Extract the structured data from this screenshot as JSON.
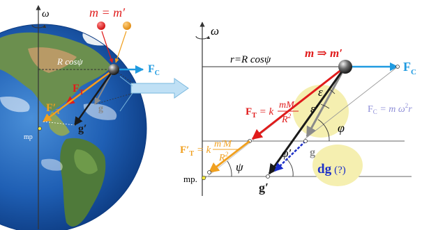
{
  "colors": {
    "red": "#e01b1b",
    "orange": "#f0a020",
    "black": "#1a1a1a",
    "gray": "#8a8a8a",
    "blue": "#1f9ae0",
    "dgblue": "#1c2fc8",
    "ball_red": "#e51f1f",
    "ball_orange": "#f29a1a",
    "highlight": "#f5efb0"
  },
  "left": {
    "omega": "ω",
    "m_eq": "m = m′",
    "r_label": "R cosψ",
    "fc": "F",
    "fc_sub": "C",
    "ft": "F",
    "ft_sub": "T",
    "ftp": "F′",
    "ftp_sub": "T",
    "g": "g",
    "gp": "g′",
    "mp": "mp"
  },
  "right": {
    "omega": "ω",
    "r_eq": "r=R cosψ",
    "m_arrow": "m ⇒ m′",
    "fc": "F",
    "fc_sub": "C",
    "fc_eq_a": "F",
    "fc_eq_sub": "C",
    "fc_eq_b": " = m ω",
    "fc_eq_sup": "2",
    "fc_eq_c": "r",
    "ft": "F",
    "ft_sub": "T",
    "ft_eq": " = k",
    "ft_num": "mM",
    "ft_den": "R",
    "ft_den_sup": "2",
    "ftp": "F′",
    "ftp_sub": "T",
    "ftp_eq": " = k",
    "ftp_num": "m′M",
    "ftp_den": "R",
    "ftp_den_sup": "2",
    "eps": "ε",
    "epsp": "ε′",
    "phi": "φ",
    "phip": "φ′",
    "psi": "ψ",
    "g": "g",
    "gp": "g′",
    "dg": "dg",
    "dg_q": "(?)",
    "mp": "mp."
  }
}
